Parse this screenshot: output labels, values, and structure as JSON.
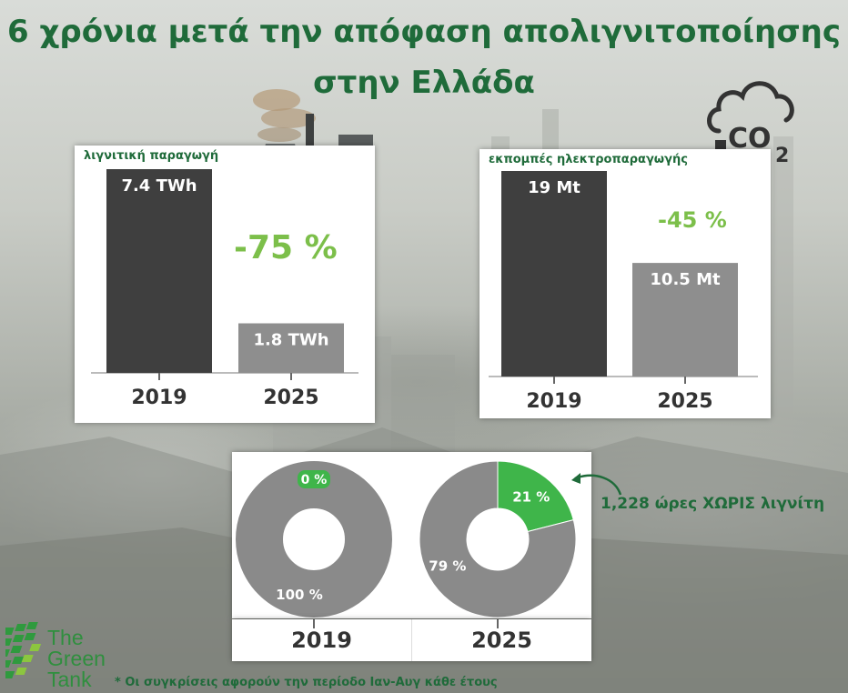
{
  "title": {
    "line1": "6 χρόνια μετά την απόφαση απολιγνιτοποίησης",
    "line2": "στην Ελλάδα"
  },
  "colors": {
    "title_green": "#1f6b3a",
    "accent_green": "#7cbf4a",
    "bar_2019": "#3f3f3f",
    "bar_2025": "#8e8e8e",
    "donut_grey": "#8a8a8a",
    "donut_green": "#3fb54a"
  },
  "icons": [
    "power-plant-icon",
    "co2-cloud-icon",
    "down-arrow-icon",
    "arrow-curved-icon",
    "the-green-tank-logo-icon"
  ],
  "chart_data": [
    {
      "type": "bar",
      "title": "λιγνιτική παραγωγή",
      "categories": [
        "2019",
        "2025"
      ],
      "values": [
        7.4,
        1.8
      ],
      "value_labels": [
        "7.4 TWh",
        "1.8 TWh"
      ],
      "change_label": "-75 %",
      "ylim": [
        0,
        7.4
      ]
    },
    {
      "type": "bar",
      "title": "εκπομπές ηλεκτροπαραγωγής",
      "categories": [
        "2019",
        "2025"
      ],
      "values": [
        19,
        10.5
      ],
      "value_labels": [
        "19 Mt",
        "10.5 Mt"
      ],
      "change_label": "-45 %",
      "ylim": [
        0,
        19
      ]
    },
    {
      "type": "pie",
      "categories": [
        "2019",
        "2025"
      ],
      "series": [
        {
          "values": [
            0,
            100
          ],
          "labels": [
            "0 %",
            "100 %"
          ]
        },
        {
          "values": [
            21,
            79
          ],
          "labels": [
            "21 %",
            "79 %"
          ]
        }
      ]
    }
  ],
  "callout": "1,228 ώρες ΧΩΡΙΣ λιγνίτη",
  "footnote": "* Οι συγκρίσεις αφορούν την περίοδο Ιαν-Αυγ κάθε έτους",
  "logo": {
    "line1": "The",
    "line2": "Green",
    "line3": "Tank"
  }
}
